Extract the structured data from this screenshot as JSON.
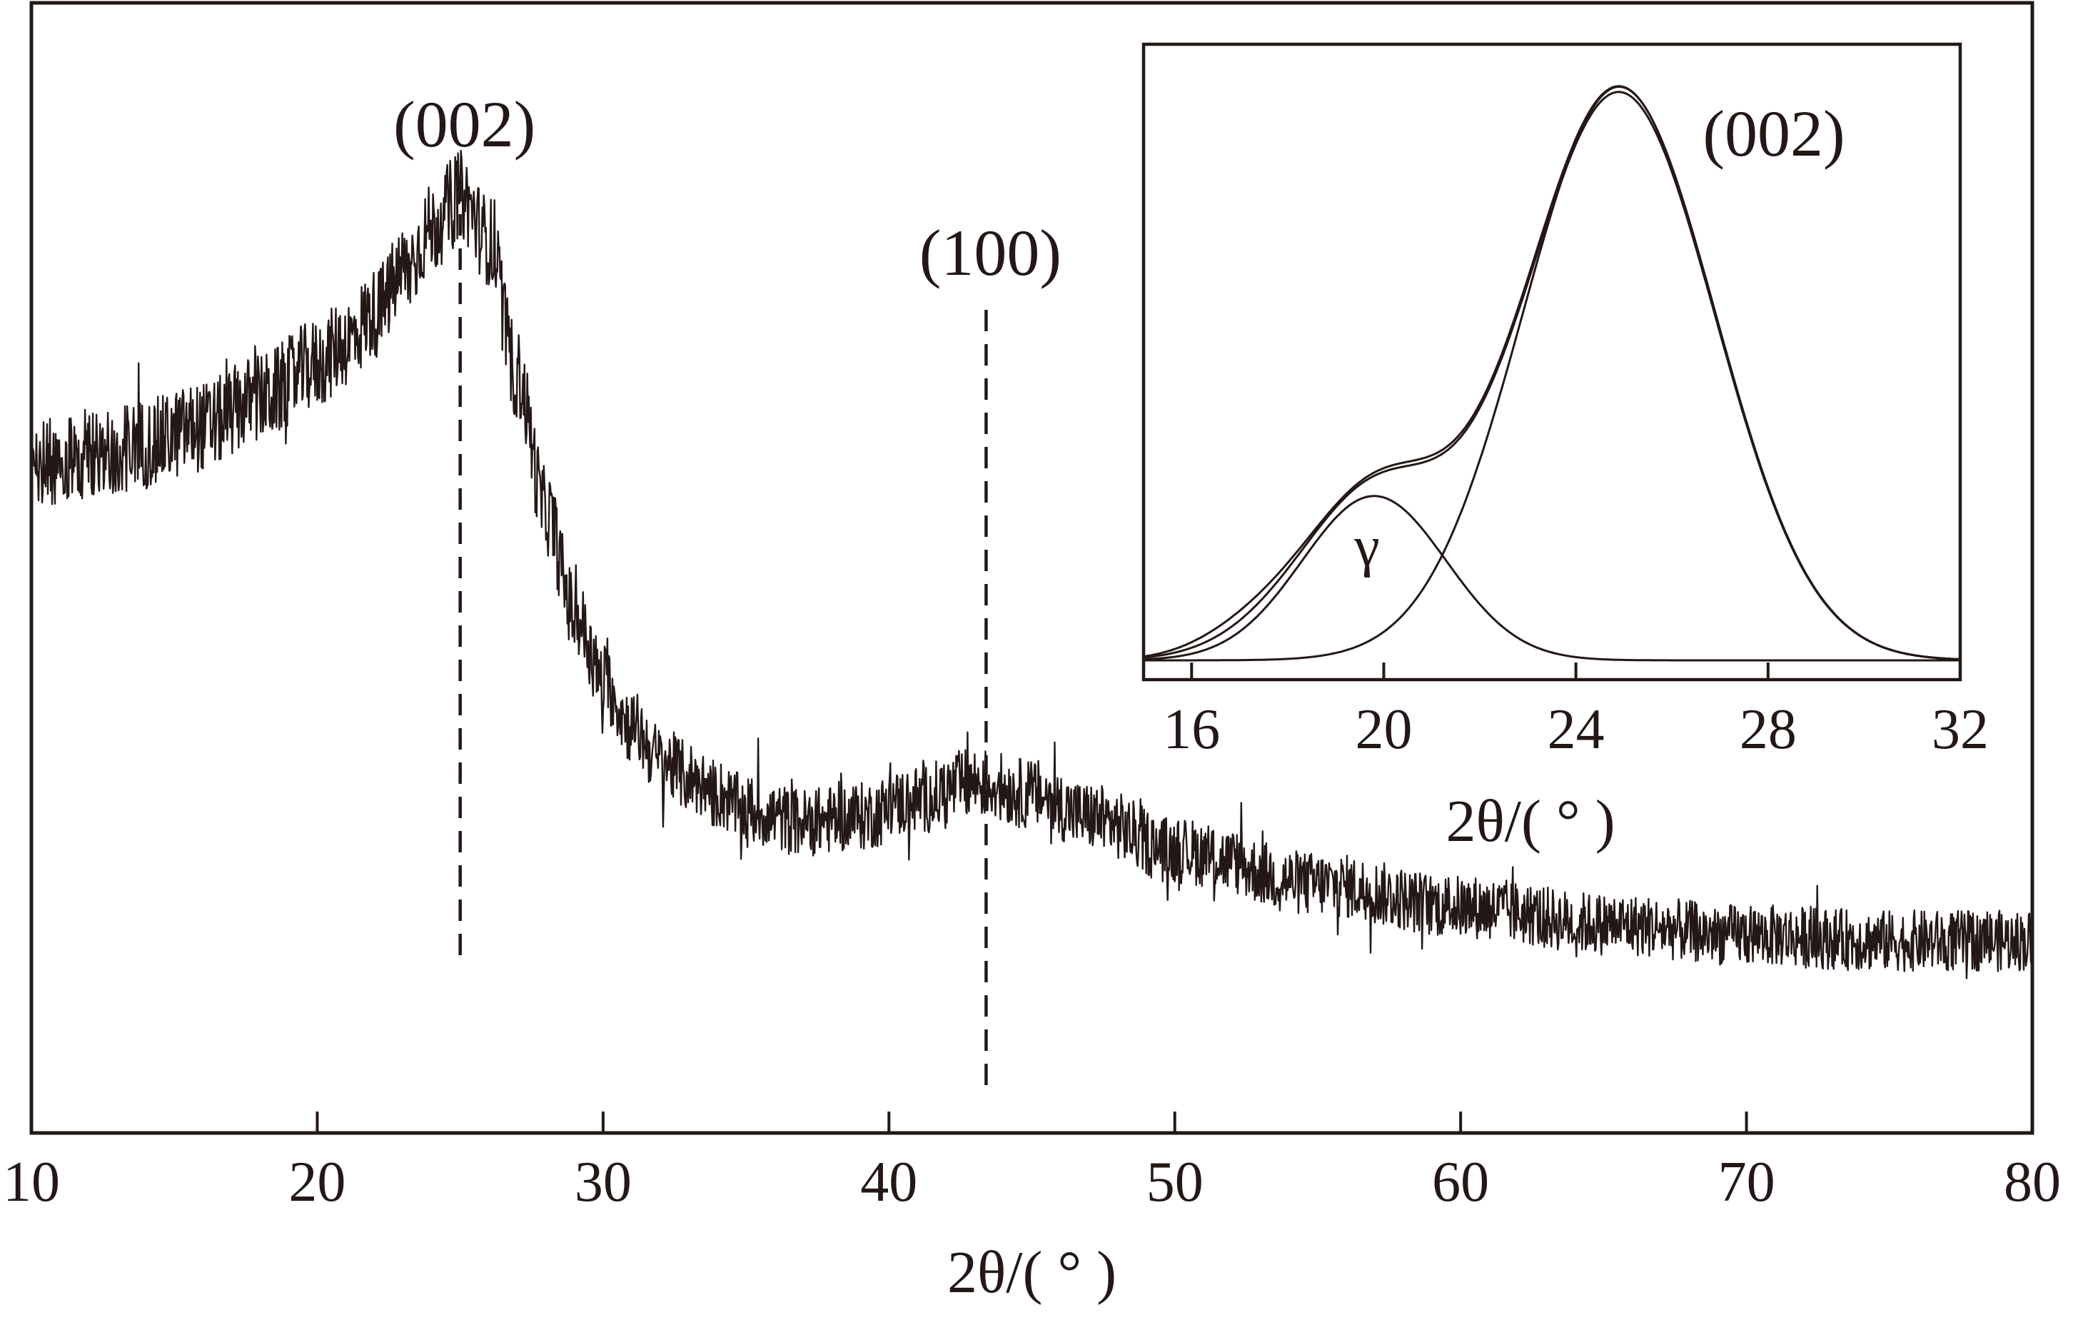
{
  "colors": {
    "line": "#231815",
    "background": "#ffffff"
  },
  "chart_data": [
    {
      "type": "line",
      "title": "",
      "xlabel": "2θ/( ° )",
      "ylabel": "",
      "xlim": [
        10,
        80
      ],
      "x_ticks": [
        10,
        20,
        30,
        40,
        50,
        60,
        70,
        80
      ],
      "x_tick_labels": [
        "10",
        "20",
        "30",
        "40",
        "50",
        "60",
        "70",
        "80"
      ],
      "y_ticks_shown": false,
      "ylim": [
        0,
        100
      ],
      "grid": false,
      "noise_amplitude": 4,
      "series": [
        {
          "x": [
            10,
            12,
            14,
            16,
            18,
            20,
            21,
            22,
            23,
            24,
            25,
            26,
            27,
            28,
            29,
            30,
            31,
            32,
            33,
            34,
            35,
            37,
            39,
            41,
            43,
            45,
            47,
            50,
            55,
            60,
            65,
            70,
            75,
            80
          ],
          "values": [
            59,
            60,
            61,
            62.5,
            65,
            68,
            70,
            72.5,
            76,
            80,
            83,
            79,
            67,
            55,
            46,
            40,
            36,
            33,
            31.5,
            30,
            28.5,
            27.5,
            28,
            29.5,
            31,
            30,
            28,
            25,
            22,
            20,
            18.5,
            17.5,
            17,
            17
          ]
        }
      ],
      "annotations": [
        {
          "label": "(002)",
          "x": 25
        },
        {
          "label": "(100)",
          "x": 43.4
        }
      ]
    },
    {
      "type": "line",
      "title": "",
      "xlabel": "2θ/( ° )",
      "ylabel": "",
      "xlim": [
        15,
        32
      ],
      "x_ticks": [
        16,
        20,
        24,
        28,
        32
      ],
      "x_tick_labels": [
        "16",
        "20",
        "24",
        "28",
        "32"
      ],
      "y_ticks_shown": false,
      "ylim": [
        0,
        100
      ],
      "grid": false,
      "components": [
        {
          "label": "(002)",
          "center": 24.9,
          "height": 96,
          "sigma": 2.0
        },
        {
          "label": "γ",
          "center": 19.8,
          "height": 27.5,
          "sigma": 1.5
        }
      ],
      "annotations": [
        {
          "label": "(002)",
          "x": 27.6
        },
        {
          "label": "γ",
          "x": 19.4
        }
      ]
    }
  ]
}
